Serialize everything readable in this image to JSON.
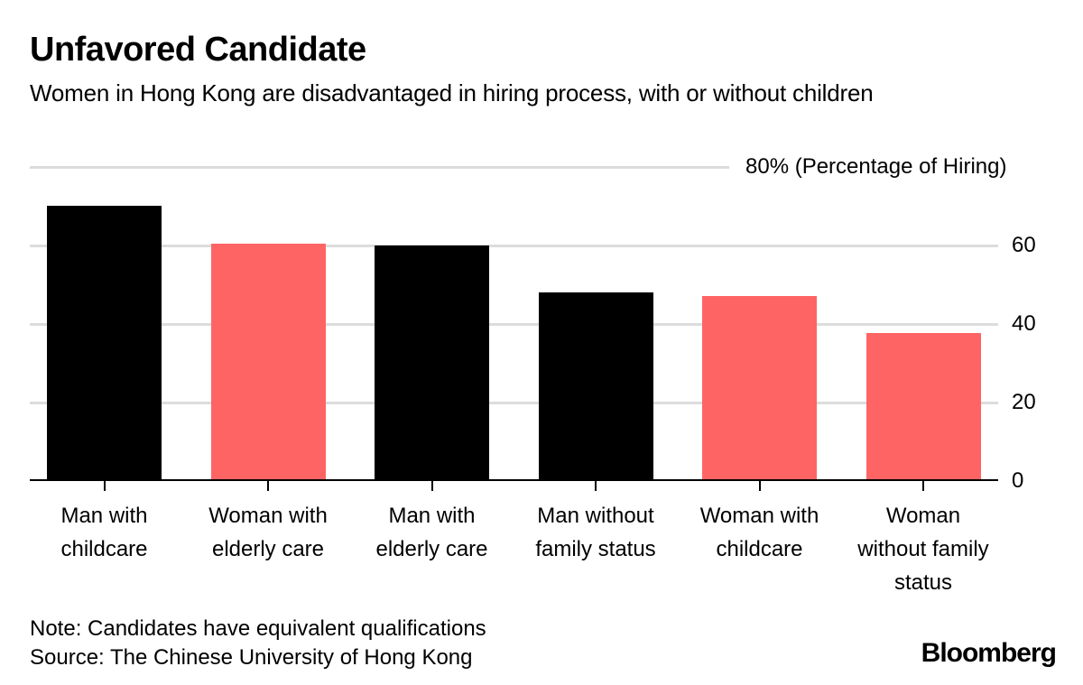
{
  "header": {
    "title": "Unfavored Candidate",
    "subtitle": "Women in Hong Kong are disadvantaged in hiring process, with or without children"
  },
  "axis": {
    "top_label": "80% (Percentage of Hiring)",
    "ticks": [
      "0",
      "20",
      "40",
      "60"
    ]
  },
  "colors": {
    "man": "#000000",
    "woman": "#ff6464",
    "grid": "#dcdcdc"
  },
  "footer": {
    "note": "Note: Candidates have equivalent qualifications",
    "source": "Source: The Chinese University of Hong Kong",
    "brand": "Bloomberg"
  },
  "chart_data": {
    "type": "bar",
    "title": "Unfavored Candidate",
    "subtitle": "Women in Hong Kong are disadvantaged in hiring process, with or without children",
    "ylabel": "Percentage of Hiring",
    "ylim": [
      0,
      80
    ],
    "yticks": [
      0,
      20,
      40,
      60,
      80
    ],
    "grid": true,
    "y_axis_position": "right",
    "categories": [
      "Man with childcare",
      "Woman with elderly care",
      "Man with elderly care",
      "Man without family status",
      "Woman with childcare",
      "Woman without family status"
    ],
    "category_lines": [
      [
        "Man with",
        "childcare"
      ],
      [
        "Woman with",
        "elderly care"
      ],
      [
        "Man with",
        "elderly care"
      ],
      [
        "Man without",
        "family status"
      ],
      [
        "Woman with",
        "childcare"
      ],
      [
        "Woman",
        "without family",
        "status"
      ]
    ],
    "values": [
      70,
      60.5,
      60,
      48,
      47,
      37.5
    ],
    "bar_colors": [
      "#000000",
      "#ff6464",
      "#000000",
      "#000000",
      "#ff6464",
      "#ff6464"
    ],
    "notes": [
      "Note: Candidates have equivalent qualifications",
      "Source: The Chinese University of Hong Kong"
    ]
  }
}
